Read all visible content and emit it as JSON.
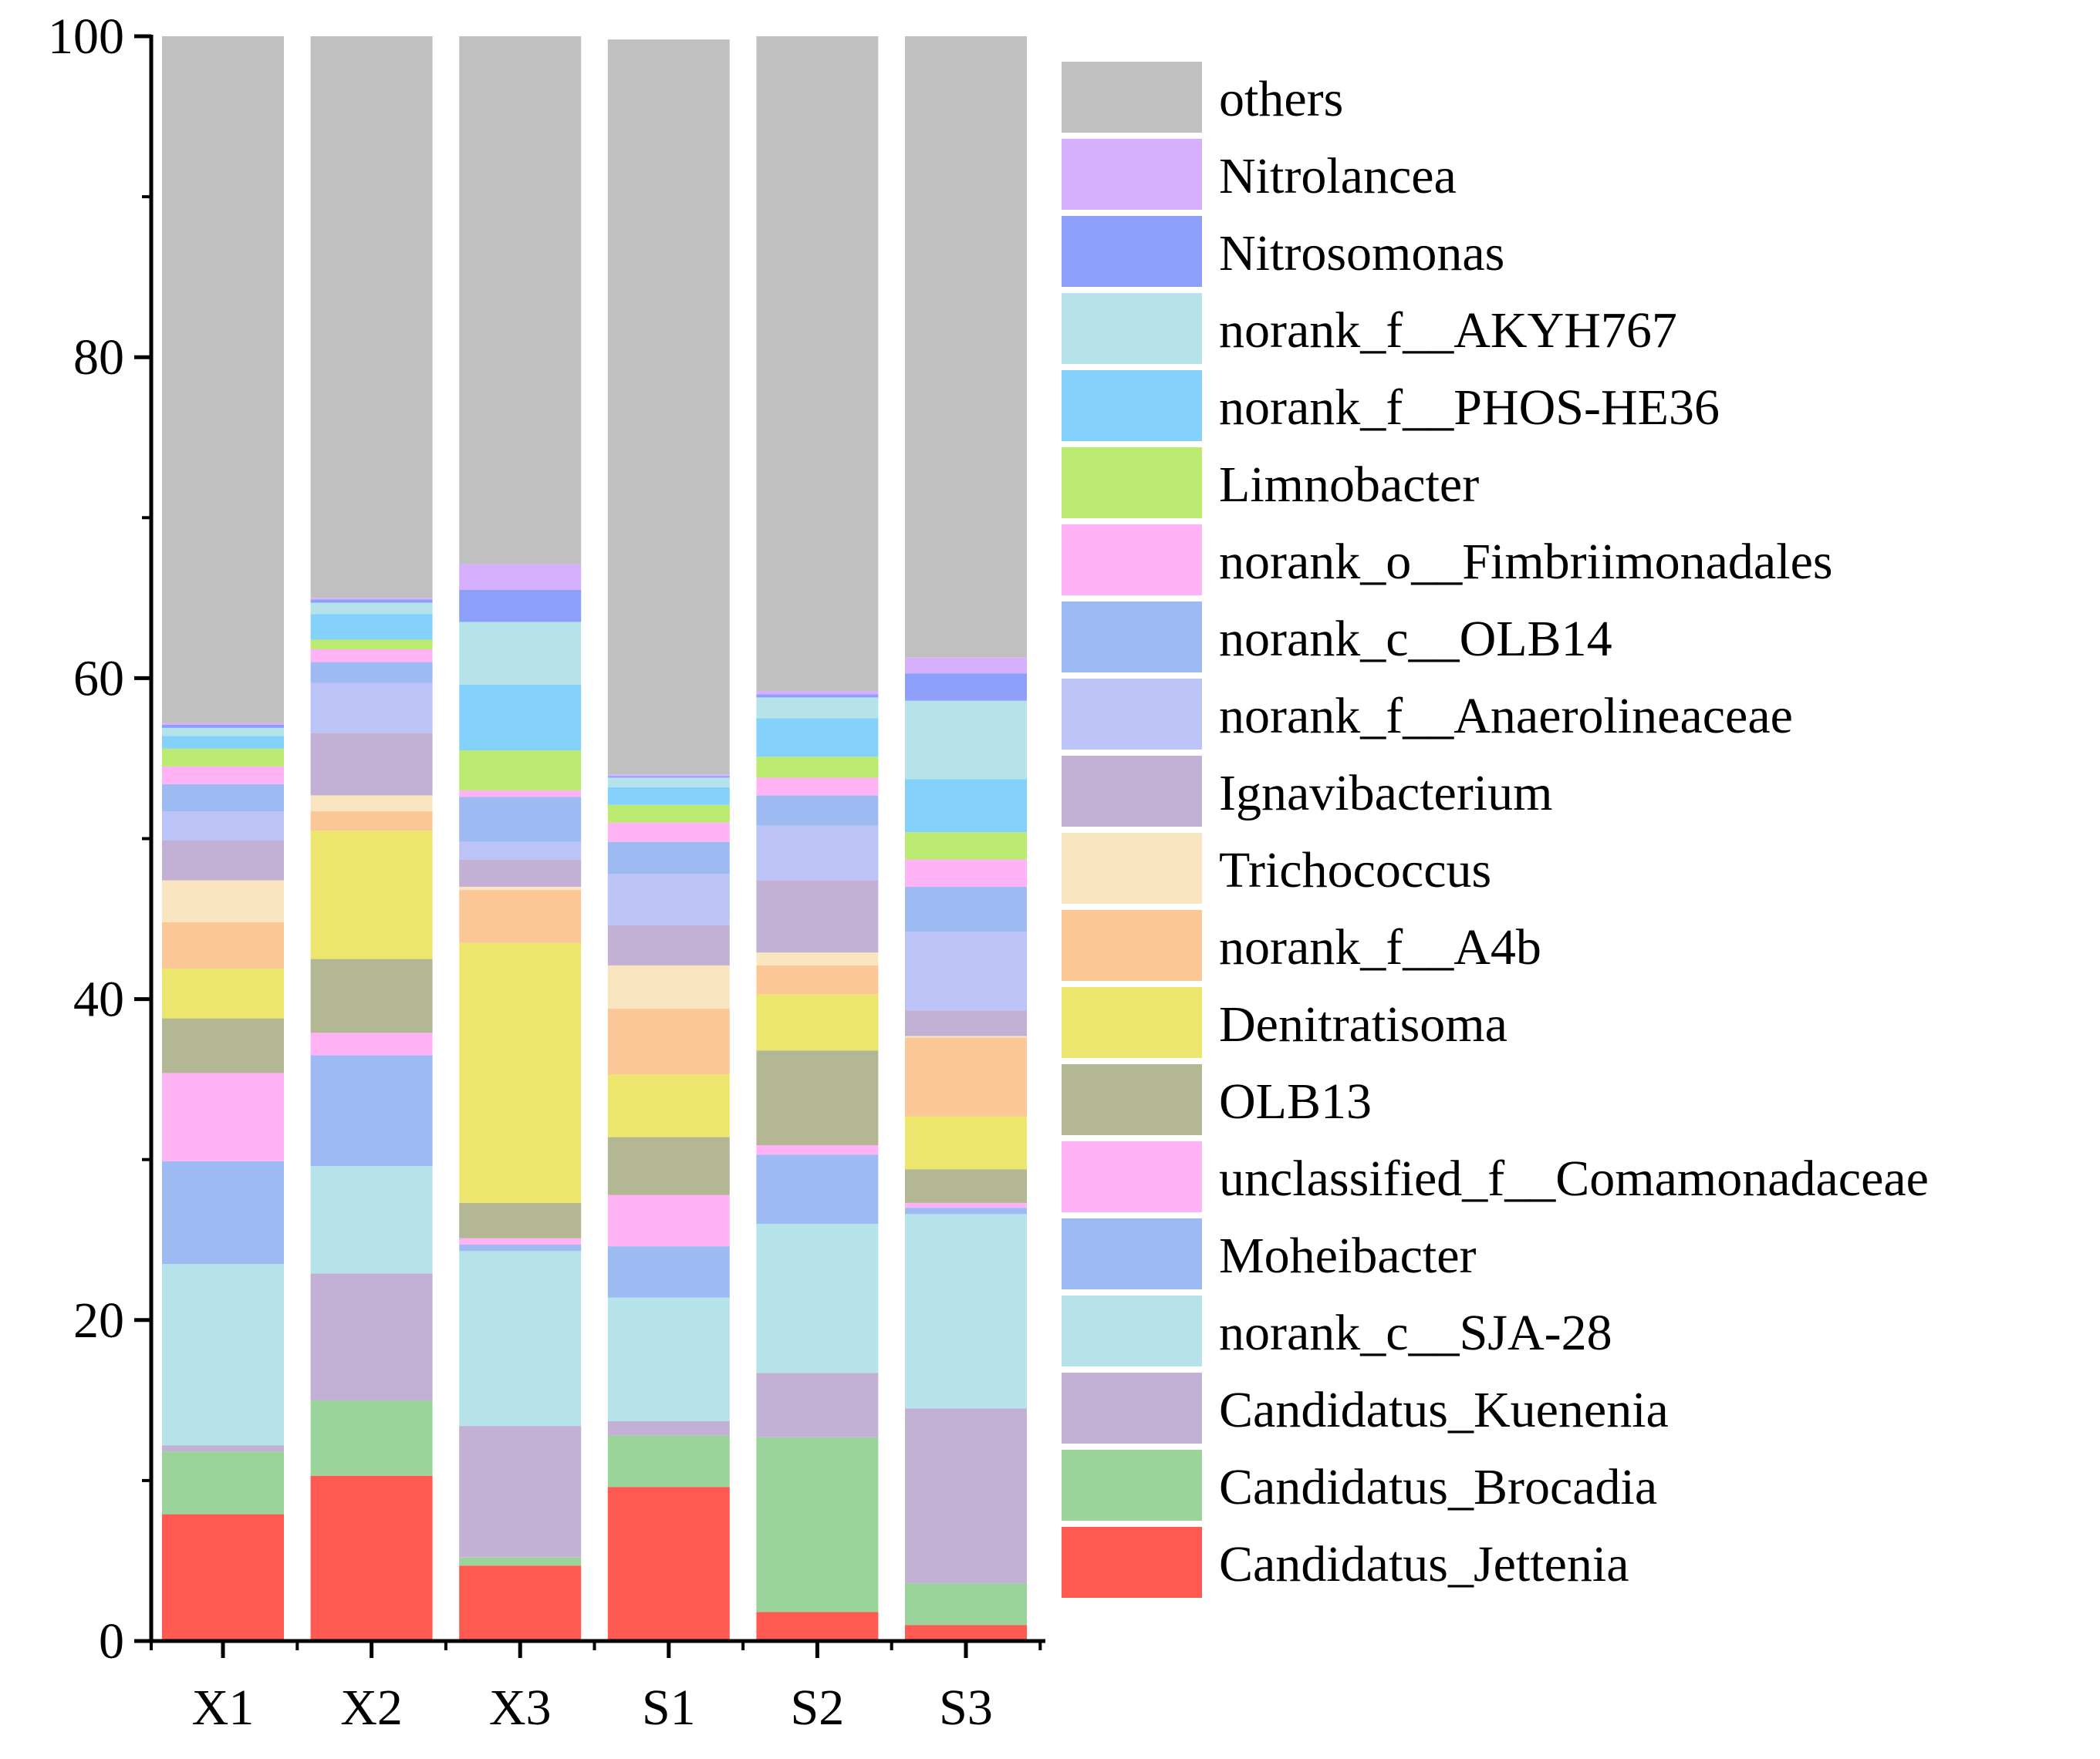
{
  "chart_data": {
    "type": "bar",
    "stacked": true,
    "title": "",
    "xlabel": "",
    "ylabel": "",
    "ylim": [
      0,
      100
    ],
    "yticks": [
      0,
      20,
      40,
      60,
      80,
      100
    ],
    "yticks_text": [
      "0",
      "20",
      "40",
      "60",
      "80",
      "100"
    ],
    "categories": [
      "X1",
      "X2",
      "X3",
      "S1",
      "S2",
      "S3"
    ],
    "legend_position": "right",
    "series": [
      {
        "name": "Candidatus_Jettenia",
        "color": "#FF5A52",
        "values": [
          7.9,
          10.3,
          4.7,
          9.6,
          1.8,
          1.0
        ]
      },
      {
        "name": "Candidatus_Brocadia",
        "color": "#9BD49A",
        "values": [
          3.9,
          4.7,
          0.5,
          3.2,
          10.9,
          2.6
        ]
      },
      {
        "name": "Candidatus_Kuenenia",
        "color": "#C2B1D5",
        "values": [
          0.4,
          7.9,
          8.2,
          0.9,
          4.0,
          10.9
        ]
      },
      {
        "name": "norank_c__SJA-28",
        "color": "#B5E3E9",
        "values": [
          11.3,
          6.7,
          10.9,
          7.7,
          9.3,
          12.1
        ]
      },
      {
        "name": "Moheibacter",
        "color": "#9DBBF2",
        "values": [
          6.4,
          6.9,
          0.4,
          3.2,
          4.3,
          0.4
        ]
      },
      {
        "name": "unclassified_f__Comamonadaceae",
        "color": "#FFB3F5",
        "values": [
          5.5,
          1.4,
          0.4,
          3.2,
          0.6,
          0.3
        ]
      },
      {
        "name": "OLB13",
        "color": "#B3B793",
        "values": [
          3.4,
          4.6,
          2.2,
          3.6,
          5.9,
          2.1
        ]
      },
      {
        "name": "Denitratisoma",
        "color": "#ECE56E",
        "values": [
          3.1,
          8.0,
          16.2,
          3.9,
          3.5,
          3.3
        ]
      },
      {
        "name": "norank_f__A4b",
        "color": "#FCC797",
        "values": [
          2.9,
          1.2,
          3.3,
          4.1,
          1.8,
          4.9
        ]
      },
      {
        "name": "Trichococcus",
        "color": "#F9E5C0",
        "values": [
          2.6,
          1.0,
          0.2,
          2.7,
          0.8,
          0.1
        ]
      },
      {
        "name": "Ignavibacterium",
        "color": "#C2B1D5",
        "values": [
          2.5,
          3.9,
          1.7,
          2.5,
          4.5,
          1.6
        ]
      },
      {
        "name": "norank_f__Anaerolineaceae",
        "color": "#BBC3F7",
        "values": [
          1.8,
          3.1,
          1.1,
          3.2,
          3.4,
          4.9
        ]
      },
      {
        "name": "norank_c__OLB14",
        "color": "#9DBBF2",
        "values": [
          1.7,
          1.3,
          2.8,
          2.0,
          1.9,
          2.8
        ]
      },
      {
        "name": "norank_o__Fimbriimonadales",
        "color": "#FFB3F5",
        "values": [
          1.1,
          0.8,
          0.4,
          1.2,
          1.1,
          1.7
        ]
      },
      {
        "name": "Limnobacter",
        "color": "#BAEA70",
        "values": [
          1.1,
          0.6,
          2.5,
          1.1,
          1.3,
          1.7
        ]
      },
      {
        "name": "norank_f__PHOS-HE36",
        "color": "#84D2FC",
        "values": [
          0.8,
          1.6,
          4.1,
          1.1,
          2.4,
          3.3
        ]
      },
      {
        "name": "norank_f__AKYH767",
        "color": "#B5E3E9",
        "values": [
          0.5,
          0.7,
          3.9,
          0.6,
          1.3,
          4.9
        ]
      },
      {
        "name": "Nitrosomonas",
        "color": "#8E9FF9",
        "values": [
          0.2,
          0.2,
          2.0,
          0.1,
          0.2,
          1.7
        ]
      },
      {
        "name": "Nitrolancea",
        "color": "#D6B0FC",
        "values": [
          0.1,
          0.1,
          1.6,
          0.1,
          0.2,
          1.0
        ]
      },
      {
        "name": "others",
        "color": "#C0C0C0",
        "values": [
          42.8,
          35.0,
          33.0,
          45.8,
          40.8,
          38.7
        ]
      }
    ]
  }
}
